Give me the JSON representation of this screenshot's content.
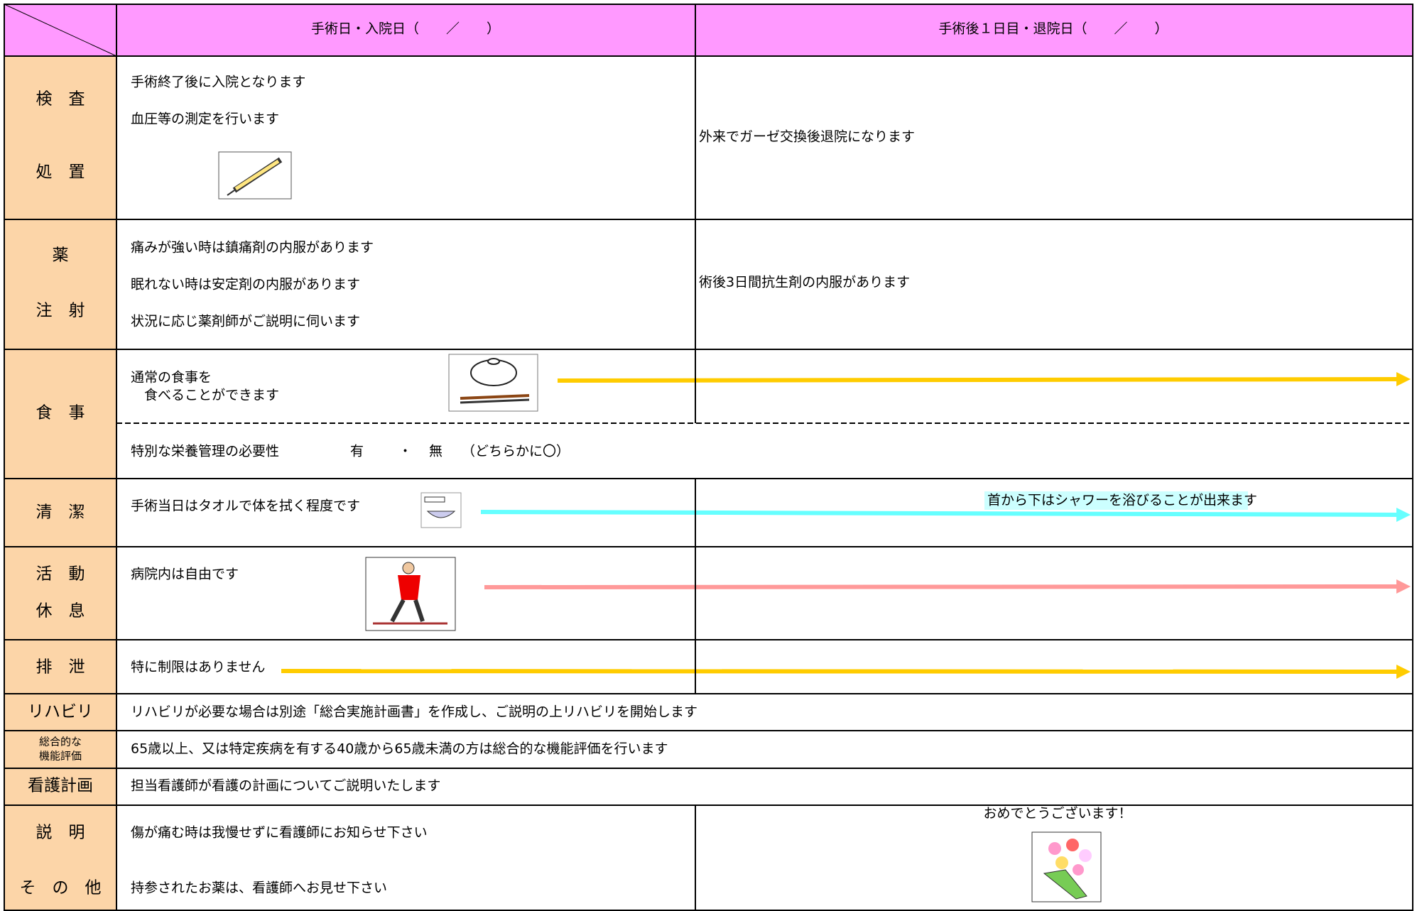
{
  "header": {
    "day1": "手術日・入院日（　　／　　）",
    "day2": "手術後１日目・退院日（　　／　　）"
  },
  "rows": [
    {
      "labels": [
        "検　査",
        "処　置"
      ],
      "day1": [
        "手術終了後に入院となります",
        "血圧等の測定を行います"
      ],
      "day2": [
        "外来でガーゼ交換後退院になります"
      ]
    },
    {
      "labels": [
        "薬",
        "注　射"
      ],
      "day1": [
        "痛みが強い時は鎮痛剤の内服があります",
        "眠れない時は安定剤の内服があります",
        "状況に応じ薬剤師がご説明に伺います"
      ],
      "day2": [
        "術後3日間抗生剤の内服があります"
      ]
    },
    {
      "labels": [
        "食　事"
      ],
      "day1": [
        "通常の食事を",
        "　食べることができます"
      ],
      "nutrition": [
        "特別な栄養管理の必要性",
        "有",
        "・",
        "無",
        "（どちらかに〇）"
      ]
    },
    {
      "labels": [
        "清　潔"
      ],
      "day1": [
        "手術当日はタオルで体を拭く程度です"
      ],
      "day2": [
        "首から下はシャワーを浴びることが出来ます"
      ]
    },
    {
      "labels": [
        "活　動",
        "休　息"
      ],
      "day1": [
        "病院内は自由です"
      ]
    },
    {
      "labels": [
        "排　泄"
      ],
      "day1": [
        "特に制限はありません"
      ]
    },
    {
      "labels": [
        "リハビリ"
      ],
      "text": "リハビリが必要な場合は別途「総合実施計画書」を作成し、ご説明の上リハビリを開始します"
    },
    {
      "labels": [
        "総合的な",
        "機能評価"
      ],
      "text": "65歳以上、又は特定疾病を有する40歳から65歳未満の方は総合的な機能評価を行います"
    },
    {
      "labels": [
        "看護計画"
      ],
      "text": "担当看護師が看護の計画についてご説明いたします"
    },
    {
      "labels": [
        "説　明",
        "そ　の　他"
      ],
      "day1": [
        "傷が痛む時は我慢せずに看護師にお知らせ下さい",
        "持参されたお薬は、看護師へお見せ下さい"
      ],
      "day2": [
        "おめでとうございます！"
      ]
    }
  ]
}
